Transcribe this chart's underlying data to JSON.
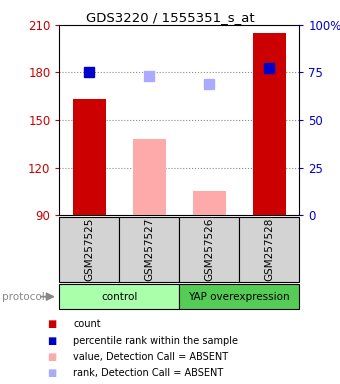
{
  "title": "GDS3220 / 1555351_s_at",
  "samples": [
    "GSM257525",
    "GSM257527",
    "GSM257526",
    "GSM257528"
  ],
  "bar_values": [
    163,
    138,
    105,
    205
  ],
  "bar_colors": [
    "#cc0000",
    "#ffaaaa",
    "#ffaaaa",
    "#cc0000"
  ],
  "rank_values": [
    180,
    178,
    173,
    183
  ],
  "rank_colors": [
    "#0000cc",
    "#aaaaff",
    "#aaaaff",
    "#0000cc"
  ],
  "detection_absent": [
    false,
    true,
    true,
    false
  ],
  "ylim_left": [
    90,
    210
  ],
  "ylim_right": [
    0,
    100
  ],
  "yticks_left": [
    90,
    120,
    150,
    180,
    210
  ],
  "yticks_right": [
    0,
    25,
    50,
    75,
    100
  ],
  "yticklabels_right": [
    "0",
    "25",
    "50",
    "75",
    "100%"
  ],
  "groups": [
    {
      "label": "control",
      "samples": [
        0,
        1
      ],
      "color": "#aaffaa"
    },
    {
      "label": "YAP overexpression",
      "samples": [
        2,
        3
      ],
      "color": "#55cc55"
    }
  ],
  "legend_items": [
    {
      "color": "#cc0000",
      "label": "count"
    },
    {
      "color": "#0000cc",
      "label": "percentile rank within the sample"
    },
    {
      "color": "#ffaaaa",
      "label": "value, Detection Call = ABSENT"
    },
    {
      "color": "#aaaaff",
      "label": "rank, Detection Call = ABSENT"
    }
  ],
  "protocol_label": "protocol",
  "background_color": "#ffffff",
  "plot_bg_color": "#ffffff",
  "grid_color": "#888888",
  "bar_width": 0.55,
  "rank_marker_size": 7
}
